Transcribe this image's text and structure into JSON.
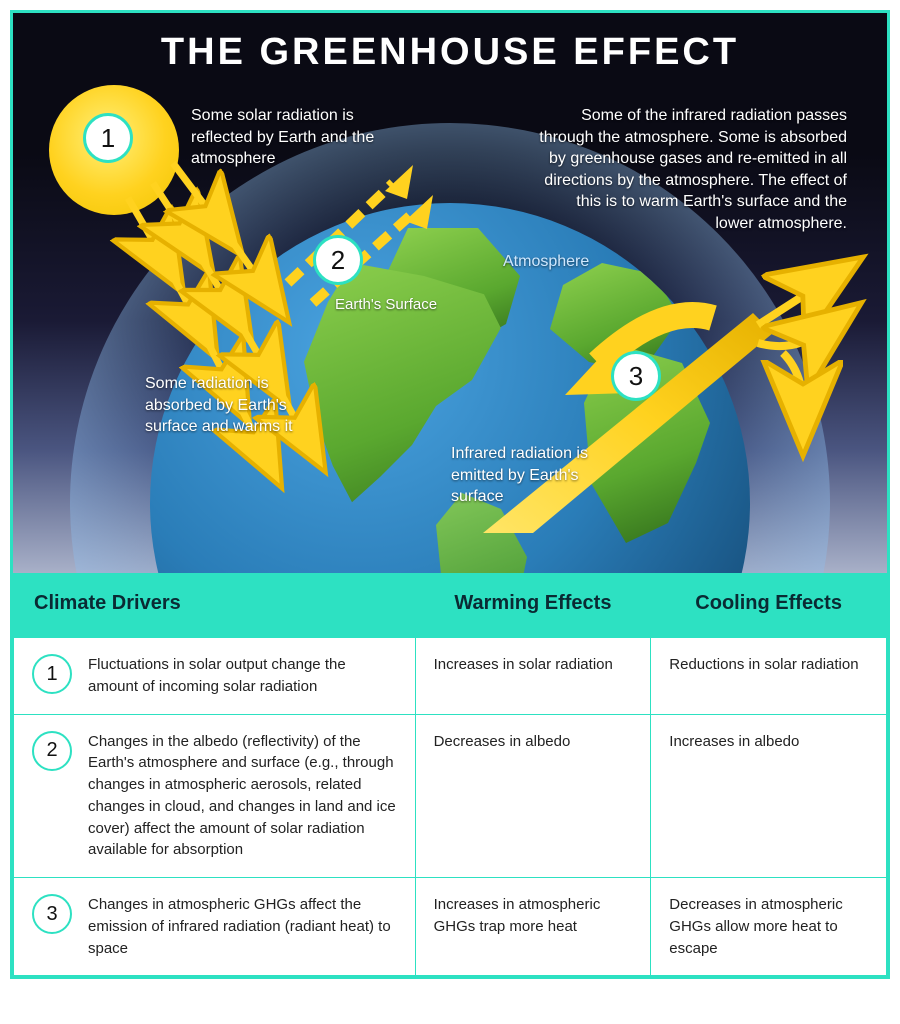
{
  "title": "THE GREENHOUSE EFFECT",
  "colors": {
    "accent": "#2de1c2",
    "sun": "#ffd21f",
    "earth_ocean": "#2a7db8",
    "earth_land": "#5aa82f",
    "space_bg_top": "#0a0a14",
    "arrow": "#ffd21f",
    "text_light": "#ffffff"
  },
  "diagram": {
    "labels": {
      "atmosphere": "Atmosphere",
      "earth_surface": "Earth's Surface"
    },
    "annotations": {
      "reflected": "Some solar radiation is reflected by Earth and the atmosphere",
      "absorbed": "Some radiation is absorbed by Earth's surface and warms it",
      "emitted": "Infrared radiation is emitted by Earth's surface",
      "right_panel": "Some of the infrared radiation passes through the atmosphere. Some is absorbed by greenhouse gases and re-emitted in all directions by the atmosphere. The effect of this is to warm Earth's surface and the lower atmosphere."
    },
    "markers": {
      "m1": "1",
      "m2": "2",
      "m3": "3"
    }
  },
  "table": {
    "headers": {
      "drivers": "Climate Drivers",
      "warming": "Warming Effects",
      "cooling": "Cooling Effects"
    },
    "rows": [
      {
        "num": "1",
        "driver": "Fluctuations in solar output change the amount of incoming solar radiation",
        "warming": "Increases in solar radiation",
        "cooling": "Reductions in solar radiation"
      },
      {
        "num": "2",
        "driver": "Changes in the albedo (reflectivity) of the Earth's atmosphere and surface (e.g., through changes in atmospheric aerosols, related changes in cloud, and changes in land and ice cover) affect the amount of solar radiation available for absorption",
        "warming": "Decreases in albedo",
        "cooling": "Increases in albedo"
      },
      {
        "num": "3",
        "driver": "Changes in atmospheric GHGs affect the emission of infrared radiation (radiant heat) to space",
        "warming": "Increases in atmospheric GHGs trap more heat",
        "cooling": "Decreases in atmospheric GHGs allow more heat to escape"
      }
    ],
    "column_widths_pct": [
      46,
      27,
      27
    ]
  }
}
